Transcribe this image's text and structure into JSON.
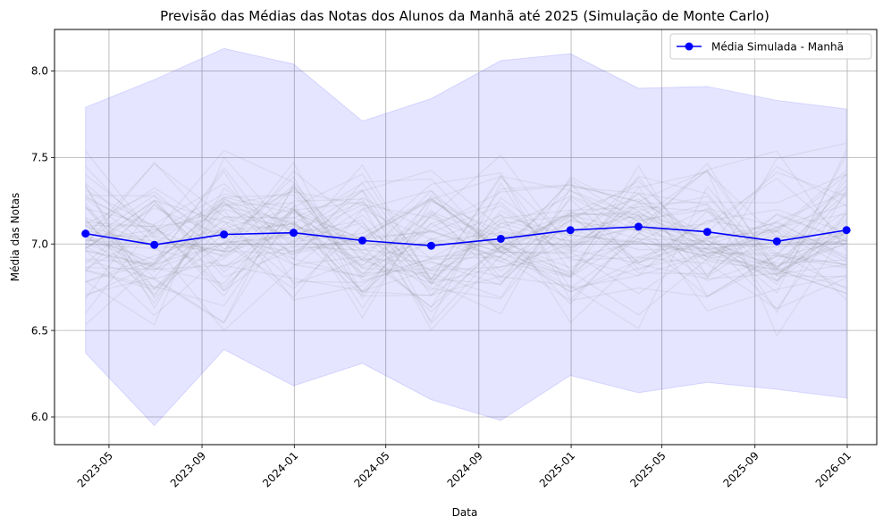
{
  "chart_data": {
    "type": "line",
    "title": "Previsão das Médias das Notas dos Alunos da Manhã até 2025 (Simulação de Monte Carlo)",
    "xlabel": "Data",
    "ylabel": "Média das Notas",
    "x_dates": [
      "2023-03-31",
      "2023-06-30",
      "2023-09-30",
      "2023-12-31",
      "2024-03-31",
      "2024-06-30",
      "2024-09-30",
      "2024-12-31",
      "2025-03-31",
      "2025-06-30",
      "2025-09-30",
      "2025-12-31"
    ],
    "x_tick_labels": [
      "2023-05",
      "2023-09",
      "2024-01",
      "2024-05",
      "2024-09",
      "2025-01",
      "2025-05",
      "2025-09",
      "2026-01"
    ],
    "x_tick_dates": [
      "2023-05-01",
      "2023-09-01",
      "2024-01-01",
      "2024-05-01",
      "2024-09-01",
      "2025-01-01",
      "2025-05-01",
      "2025-09-01",
      "2026-01-01"
    ],
    "xlim": [
      "2023-02-18",
      "2026-02-09"
    ],
    "ylim": [
      5.84,
      8.24
    ],
    "y_ticks": [
      6.0,
      6.5,
      7.0,
      7.5,
      8.0
    ],
    "y_tick_labels": [
      "6.0",
      "6.5",
      "7.0",
      "7.5",
      "8.0"
    ],
    "grid": true,
    "legend_position": "top-right",
    "series": [
      {
        "name": "Média Simulada - Manhã",
        "color": "#0000ff",
        "marker": "circle",
        "values": [
          7.06,
          6.995,
          7.055,
          7.065,
          7.02,
          6.99,
          7.03,
          7.08,
          7.1,
          7.07,
          7.015,
          7.08
        ]
      }
    ],
    "band": {
      "color": "#0000ff",
      "opacity": 0.1,
      "upper": [
        7.79,
        7.95,
        8.13,
        8.04,
        7.71,
        7.84,
        8.06,
        8.1,
        7.9,
        7.91,
        7.83,
        7.78
      ],
      "lower": [
        6.37,
        5.95,
        6.39,
        6.18,
        6.31,
        6.1,
        5.98,
        6.24,
        6.14,
        6.2,
        6.16,
        6.11
      ]
    },
    "simulations_color": "#808080"
  }
}
